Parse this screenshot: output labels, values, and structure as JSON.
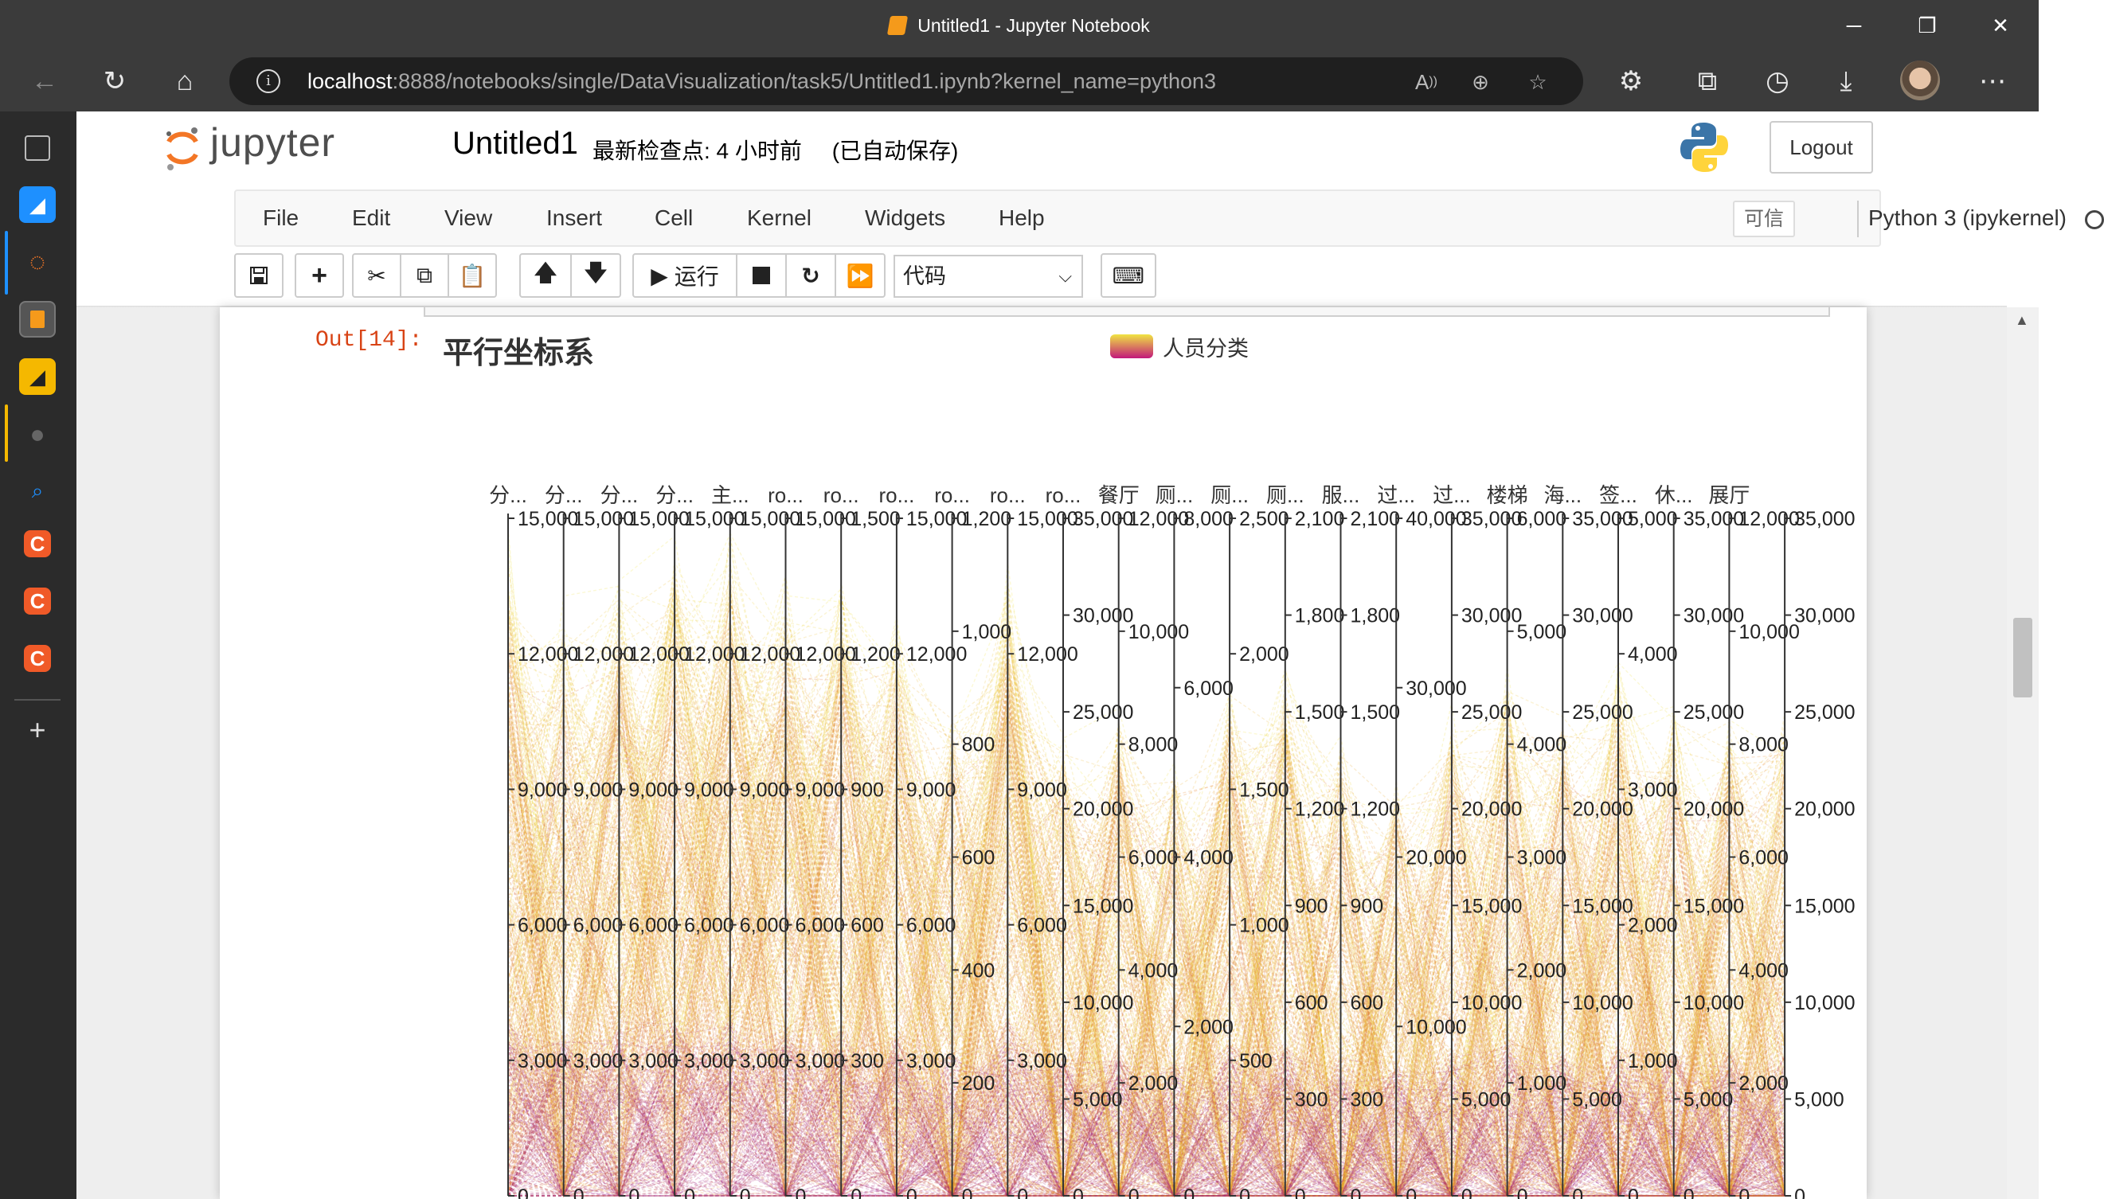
{
  "window": {
    "title": "Untitled1 - Jupyter Notebook",
    "controls": {
      "minimize": "─",
      "restore": "❐",
      "close": "✕"
    }
  },
  "browser": {
    "url_host": "localhost",
    "url_rest": ":8888/notebooks/single/DataVisualization/task5/Untitled1.ipynb?kernel_name=python3",
    "icons": [
      "back-arrow-icon",
      "reload-icon",
      "home-icon",
      "site-info-icon",
      "read-aloud-icon",
      "zoom-icon",
      "favorite-icon",
      "extensions-icon",
      "collections-icon",
      "history-icon",
      "downloads-icon",
      "profile-avatar",
      "more-icon"
    ]
  },
  "jupyter": {
    "logo_text": "jupyter",
    "notebook_name": "Untitled1",
    "checkpoint": "最新检查点: 4 小时前",
    "autosave": "(已自动保存)",
    "logout": "Logout",
    "menu": [
      "File",
      "Edit",
      "View",
      "Insert",
      "Cell",
      "Kernel",
      "Widgets",
      "Help"
    ],
    "trusted": "可信",
    "kernel": "Python 3 (ipykernel)",
    "run_label": "运行",
    "cell_type": "代码"
  },
  "cell": {
    "out_prompt": "Out[14]:"
  },
  "chart_data": {
    "type": "parallel",
    "title": "平行坐标系",
    "legend": [
      {
        "name": "人员分类",
        "color_top": "#f0e442",
        "color_bottom": "#c2187a"
      }
    ],
    "axes": [
      {
        "name": "分...",
        "ticks": [
          "15,000",
          "12,000",
          "9,000",
          "6,000",
          "3,000",
          "0"
        ]
      },
      {
        "name": "分...",
        "ticks": [
          "15,000",
          "12,000",
          "9,000",
          "6,000",
          "3,000",
          "0"
        ]
      },
      {
        "name": "分...",
        "ticks": [
          "15,000",
          "12,000",
          "9,000",
          "6,000",
          "3,000",
          "0"
        ]
      },
      {
        "name": "分...",
        "ticks": [
          "15,000",
          "12,000",
          "9,000",
          "6,000",
          "3,000",
          "0"
        ]
      },
      {
        "name": "主...",
        "ticks": [
          "15,000",
          "12,000",
          "9,000",
          "6,000",
          "3,000",
          "0"
        ]
      },
      {
        "name": "ro...",
        "ticks": [
          "15,000",
          "12,000",
          "9,000",
          "6,000",
          "3,000",
          "0"
        ]
      },
      {
        "name": "ro...",
        "ticks": [
          "1,500",
          "1,200",
          "900",
          "600",
          "300",
          "0"
        ]
      },
      {
        "name": "ro...",
        "ticks": [
          "15,000",
          "12,000",
          "9,000",
          "6,000",
          "3,000",
          "0"
        ]
      },
      {
        "name": "ro...",
        "ticks": [
          "1,200",
          "1,000",
          "800",
          "600",
          "400",
          "200",
          "0"
        ]
      },
      {
        "name": "ro...",
        "ticks": [
          "15,000",
          "12,000",
          "9,000",
          "6,000",
          "3,000",
          "0"
        ]
      },
      {
        "name": "ro...",
        "ticks": [
          "35,000",
          "30,000",
          "25,000",
          "20,000",
          "15,000",
          "10,000",
          "5,000",
          "0"
        ]
      },
      {
        "name": "餐厅",
        "ticks": [
          "12,000",
          "10,000",
          "8,000",
          "6,000",
          "4,000",
          "2,000",
          "0"
        ]
      },
      {
        "name": "厕...",
        "ticks": [
          "8,000",
          "6,000",
          "4,000",
          "2,000",
          "0"
        ]
      },
      {
        "name": "厕...",
        "ticks": [
          "2,500",
          "2,000",
          "1,500",
          "1,000",
          "500",
          "0"
        ]
      },
      {
        "name": "厕...",
        "ticks": [
          "2,100",
          "1,800",
          "1,500",
          "1,200",
          "900",
          "600",
          "300",
          "0"
        ]
      },
      {
        "name": "服...",
        "ticks": [
          "2,100",
          "1,800",
          "1,500",
          "1,200",
          "900",
          "600",
          "300",
          "0"
        ]
      },
      {
        "name": "过...",
        "ticks": [
          "40,000",
          "30,000",
          "20,000",
          "10,000",
          "0"
        ]
      },
      {
        "name": "过...",
        "ticks": [
          "35,000",
          "30,000",
          "25,000",
          "20,000",
          "15,000",
          "10,000",
          "5,000",
          "0"
        ]
      },
      {
        "name": "楼梯",
        "ticks": [
          "6,000",
          "5,000",
          "4,000",
          "3,000",
          "2,000",
          "1,000",
          "0"
        ]
      },
      {
        "name": "海...",
        "ticks": [
          "35,000",
          "30,000",
          "25,000",
          "20,000",
          "15,000",
          "10,000",
          "5,000",
          "0"
        ]
      },
      {
        "name": "签...",
        "ticks": [
          "5,000",
          "4,000",
          "3,000",
          "2,000",
          "1,000",
          "0"
        ]
      },
      {
        "name": "休...",
        "ticks": [
          "35,000",
          "30,000",
          "25,000",
          "20,000",
          "15,000",
          "10,000",
          "5,000",
          "0"
        ]
      },
      {
        "name": "展厅",
        "ticks": [
          "12,000",
          "10,000",
          "8,000",
          "6,000",
          "4,000",
          "2,000",
          "0"
        ]
      },
      {
        "name": "",
        "ticks": [
          "35,000",
          "30,000",
          "25,000",
          "20,000",
          "15,000",
          "10,000",
          "5,000",
          "0"
        ]
      }
    ]
  }
}
